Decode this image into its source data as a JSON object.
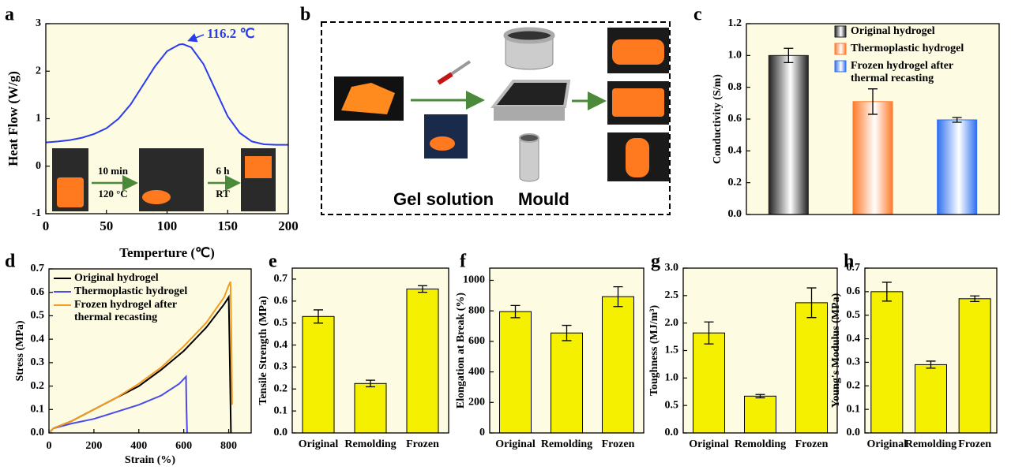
{
  "chart_data": [
    {
      "panel": "a",
      "type": "line",
      "xlabel": "Temperture (℃)",
      "ylabel": "Heat Flow (W/g)",
      "annotation": "116.2 ℃",
      "inset_labels": [
        "10 min",
        "120 °C",
        "6 h",
        "RT"
      ],
      "x": [
        0,
        10,
        20,
        30,
        40,
        50,
        60,
        70,
        80,
        90,
        100,
        110,
        113,
        120,
        130,
        140,
        150,
        160,
        170,
        180,
        190,
        200
      ],
      "values": [
        0.5,
        0.52,
        0.55,
        0.6,
        0.68,
        0.8,
        1.0,
        1.3,
        1.7,
        2.1,
        2.42,
        2.56,
        2.57,
        2.5,
        2.15,
        1.6,
        1.05,
        0.7,
        0.52,
        0.46,
        0.45,
        0.45
      ],
      "color": "#2b3cf0",
      "xlim": [
        0,
        200
      ],
      "xticks": [
        0,
        50,
        100,
        150,
        200
      ],
      "ylim": [
        -1,
        3
      ],
      "yticks": [
        -1,
        0,
        1,
        2,
        3
      ]
    },
    {
      "panel": "c",
      "type": "bar",
      "ylabel": "Conductivity (S/m)",
      "ylim": [
        0,
        1.2
      ],
      "yticks": [
        {
          "value": 0,
          "label": "0.0"
        },
        0.2,
        0.4,
        0.6,
        0.8,
        {
          "value": 1,
          "label": "1.0"
        },
        1.2
      ],
      "series": [
        {
          "name": "Original hydrogel",
          "color": "#222222",
          "values": [
            1.0
          ],
          "errors": [
            0.045
          ]
        },
        {
          "name": "Thermoplastic hydrogel",
          "color": "#ff7a2a",
          "values": [
            0.71
          ],
          "errors": [
            0.08
          ]
        },
        {
          "name": "Frozen hydrogel after thermal recasting",
          "color": "#2f6ff0",
          "values": [
            0.595
          ],
          "errors": [
            0.015
          ]
        }
      ]
    },
    {
      "panel": "d",
      "type": "line",
      "xlabel": "Strain (%)",
      "ylabel": "Stress (MPa)",
      "xlim": [
        0,
        900
      ],
      "xticks": [
        0,
        200,
        400,
        600,
        800
      ],
      "ylim": [
        0,
        0.7
      ],
      "yticks": [
        {
          "value": 0,
          "label": "0.0"
        },
        0.1,
        0.2,
        0.3,
        0.4,
        0.5,
        0.6,
        0.7
      ],
      "series": [
        {
          "name": "Original hydrogel",
          "color": "#000000",
          "x": [
            0,
            20,
            100,
            200,
            300,
            400,
            500,
            600,
            700,
            780,
            800,
            805,
            810
          ],
          "values": [
            0,
            0.02,
            0.05,
            0.1,
            0.15,
            0.2,
            0.27,
            0.35,
            0.45,
            0.55,
            0.58,
            0.3,
            0
          ]
        },
        {
          "name": "Thermoplastic hydrogel",
          "color": "#4a4af0",
          "x": [
            0,
            20,
            100,
            200,
            300,
            400,
            500,
            580,
            610,
            612,
            615
          ],
          "values": [
            0,
            0.02,
            0.04,
            0.06,
            0.09,
            0.12,
            0.16,
            0.21,
            0.24,
            0.1,
            0
          ]
        },
        {
          "name": "Frozen hydrogel after thermal recasting",
          "color": "#f59a1a",
          "x": [
            0,
            20,
            100,
            200,
            300,
            400,
            500,
            600,
            700,
            780,
            800,
            808,
            812,
            815
          ],
          "values": [
            0,
            0.02,
            0.05,
            0.1,
            0.15,
            0.21,
            0.28,
            0.37,
            0.47,
            0.58,
            0.63,
            0.645,
            0.4,
            0.12
          ]
        }
      ]
    },
    {
      "panel": "e",
      "type": "bar",
      "ylabel": "Tensile Strength (MPa)",
      "categories": [
        "Original",
        "Remolding",
        "Frozen"
      ],
      "values": [
        0.53,
        0.225,
        0.655
      ],
      "errors": [
        0.03,
        0.015,
        0.015
      ],
      "color": "#f5ef00",
      "ylim": [
        0,
        0.75
      ],
      "yticks": [
        {
          "value": 0,
          "label": "0.0"
        },
        0.1,
        0.2,
        0.3,
        0.4,
        0.5,
        0.6,
        0.7
      ]
    },
    {
      "panel": "f",
      "type": "bar",
      "ylabel": "Elongation at Break (%)",
      "categories": [
        "Original",
        "Remolding",
        "Frozen"
      ],
      "values": [
        795,
        655,
        893
      ],
      "errors": [
        40,
        50,
        65
      ],
      "color": "#f5ef00",
      "ylim": [
        0,
        1080
      ],
      "yticks": [
        0,
        200,
        400,
        600,
        800,
        1000
      ]
    },
    {
      "panel": "g",
      "type": "bar",
      "ylabel": "Toughness (MJ/m³)",
      "categories": [
        "Original",
        "Remolding",
        "Frozen"
      ],
      "values": [
        1.82,
        0.67,
        2.37
      ],
      "errors": [
        0.2,
        0.03,
        0.27
      ],
      "color": "#f5ef00",
      "ylim": [
        0,
        3
      ],
      "yticks": [
        {
          "value": 0,
          "label": "0.0"
        },
        0.5,
        {
          "value": 1,
          "label": "1.0"
        },
        1.5,
        {
          "value": 2,
          "label": "2.0"
        },
        2.5,
        {
          "value": 3,
          "label": "3.0"
        }
      ]
    },
    {
      "panel": "h",
      "type": "bar",
      "ylabel": "Young's Modulus (MPa)",
      "categories": [
        "Original",
        "Remolding",
        "Frozen"
      ],
      "values": [
        0.6,
        0.29,
        0.57
      ],
      "errors": [
        0.04,
        0.015,
        0.012
      ],
      "color": "#f5ef00",
      "ylim": [
        0,
        0.7
      ],
      "yticks": [
        {
          "value": 0,
          "label": "0.0"
        },
        0.1,
        0.2,
        0.3,
        0.4,
        0.5,
        0.6,
        0.7
      ]
    }
  ],
  "diagram": {
    "panel": "b",
    "labels": [
      "Gel solution",
      "Mould"
    ]
  }
}
